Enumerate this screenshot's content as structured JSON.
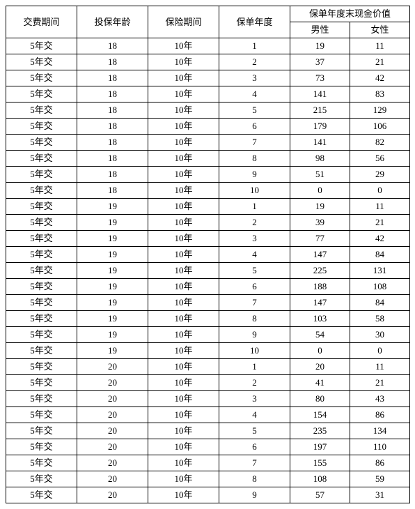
{
  "header": {
    "payment_period": "交费期间",
    "entry_age": "投保年龄",
    "insurance_period": "保险期间",
    "policy_year": "保单年度",
    "end_cash_value": "保单年度末现金价值",
    "male": "男性",
    "female": "女性"
  },
  "rows": [
    {
      "pp": "5年交",
      "age": "18",
      "ip": "10年",
      "py": "1",
      "m": "19",
      "f": "11"
    },
    {
      "pp": "5年交",
      "age": "18",
      "ip": "10年",
      "py": "2",
      "m": "37",
      "f": "21"
    },
    {
      "pp": "5年交",
      "age": "18",
      "ip": "10年",
      "py": "3",
      "m": "73",
      "f": "42"
    },
    {
      "pp": "5年交",
      "age": "18",
      "ip": "10年",
      "py": "4",
      "m": "141",
      "f": "83"
    },
    {
      "pp": "5年交",
      "age": "18",
      "ip": "10年",
      "py": "5",
      "m": "215",
      "f": "129"
    },
    {
      "pp": "5年交",
      "age": "18",
      "ip": "10年",
      "py": "6",
      "m": "179",
      "f": "106"
    },
    {
      "pp": "5年交",
      "age": "18",
      "ip": "10年",
      "py": "7",
      "m": "141",
      "f": "82"
    },
    {
      "pp": "5年交",
      "age": "18",
      "ip": "10年",
      "py": "8",
      "m": "98",
      "f": "56"
    },
    {
      "pp": "5年交",
      "age": "18",
      "ip": "10年",
      "py": "9",
      "m": "51",
      "f": "29"
    },
    {
      "pp": "5年交",
      "age": "18",
      "ip": "10年",
      "py": "10",
      "m": "0",
      "f": "0"
    },
    {
      "pp": "5年交",
      "age": "19",
      "ip": "10年",
      "py": "1",
      "m": "19",
      "f": "11"
    },
    {
      "pp": "5年交",
      "age": "19",
      "ip": "10年",
      "py": "2",
      "m": "39",
      "f": "21"
    },
    {
      "pp": "5年交",
      "age": "19",
      "ip": "10年",
      "py": "3",
      "m": "77",
      "f": "42"
    },
    {
      "pp": "5年交",
      "age": "19",
      "ip": "10年",
      "py": "4",
      "m": "147",
      "f": "84"
    },
    {
      "pp": "5年交",
      "age": "19",
      "ip": "10年",
      "py": "5",
      "m": "225",
      "f": "131"
    },
    {
      "pp": "5年交",
      "age": "19",
      "ip": "10年",
      "py": "6",
      "m": "188",
      "f": "108"
    },
    {
      "pp": "5年交",
      "age": "19",
      "ip": "10年",
      "py": "7",
      "m": "147",
      "f": "84"
    },
    {
      "pp": "5年交",
      "age": "19",
      "ip": "10年",
      "py": "8",
      "m": "103",
      "f": "58"
    },
    {
      "pp": "5年交",
      "age": "19",
      "ip": "10年",
      "py": "9",
      "m": "54",
      "f": "30"
    },
    {
      "pp": "5年交",
      "age": "19",
      "ip": "10年",
      "py": "10",
      "m": "0",
      "f": "0"
    },
    {
      "pp": "5年交",
      "age": "20",
      "ip": "10年",
      "py": "1",
      "m": "20",
      "f": "11"
    },
    {
      "pp": "5年交",
      "age": "20",
      "ip": "10年",
      "py": "2",
      "m": "41",
      "f": "21"
    },
    {
      "pp": "5年交",
      "age": "20",
      "ip": "10年",
      "py": "3",
      "m": "80",
      "f": "43"
    },
    {
      "pp": "5年交",
      "age": "20",
      "ip": "10年",
      "py": "4",
      "m": "154",
      "f": "86"
    },
    {
      "pp": "5年交",
      "age": "20",
      "ip": "10年",
      "py": "5",
      "m": "235",
      "f": "134"
    },
    {
      "pp": "5年交",
      "age": "20",
      "ip": "10年",
      "py": "6",
      "m": "197",
      "f": "110"
    },
    {
      "pp": "5年交",
      "age": "20",
      "ip": "10年",
      "py": "7",
      "m": "155",
      "f": "86"
    },
    {
      "pp": "5年交",
      "age": "20",
      "ip": "10年",
      "py": "8",
      "m": "108",
      "f": "59"
    },
    {
      "pp": "5年交",
      "age": "20",
      "ip": "10年",
      "py": "9",
      "m": "57",
      "f": "31"
    }
  ]
}
